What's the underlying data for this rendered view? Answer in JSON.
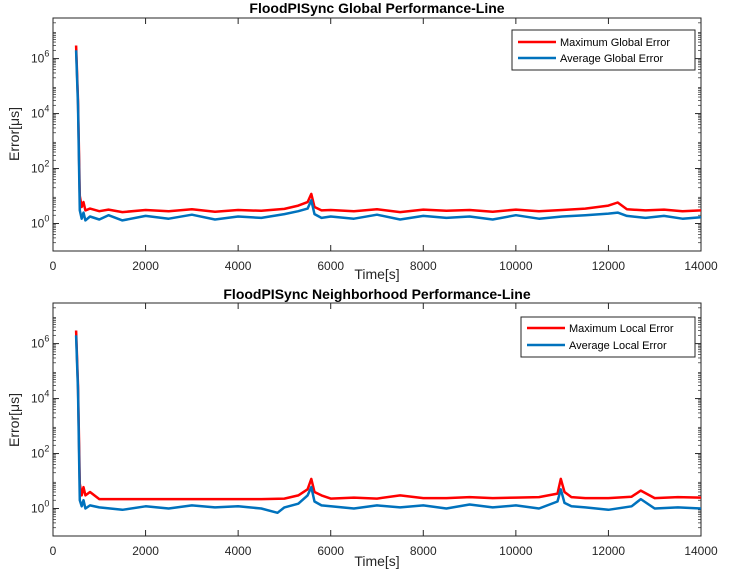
{
  "chart_data": [
    {
      "type": "line",
      "title": "FloodPISync Global Performance-Line",
      "xlabel": "Time[s]",
      "ylabel": "Error[μs]",
      "yscale": "log",
      "xlim": [
        0,
        14000
      ],
      "ylim": [
        0.1,
        30000000
      ],
      "grid": false,
      "legend_position": "top-right",
      "xticks": [
        0,
        2000,
        4000,
        6000,
        8000,
        10000,
        12000,
        14000
      ],
      "ytick_exponents": [
        0,
        2,
        4,
        6
      ],
      "colors": {
        "max": "#FF0000",
        "avg": "#0072BD"
      },
      "series": [
        {
          "name": "Maximum Global Error",
          "x": [
            500,
            540,
            580,
            620,
            660,
            700,
            800,
            1000,
            1200,
            1500,
            2000,
            2500,
            3000,
            3500,
            4000,
            4500,
            5000,
            5300,
            5500,
            5580,
            5650,
            5800,
            6000,
            6500,
            7000,
            7500,
            8000,
            8500,
            9000,
            9500,
            10000,
            10500,
            11000,
            11500,
            12000,
            12200,
            12400,
            12800,
            13200,
            13600,
            14000
          ],
          "values": [
            3000000,
            30000,
            10,
            4,
            6,
            3,
            3.5,
            2.8,
            3.2,
            2.6,
            3.1,
            2.8,
            3.3,
            2.7,
            3.1,
            2.9,
            3.4,
            4.5,
            6,
            12,
            4,
            3,
            3.1,
            2.8,
            3.3,
            2.6,
            3.2,
            2.9,
            3.1,
            2.7,
            3.2,
            2.8,
            3.1,
            3.5,
            4.5,
            5.8,
            3.3,
            3.0,
            3.2,
            2.8,
            3.0
          ]
        },
        {
          "name": "Average Global Error",
          "x": [
            500,
            540,
            580,
            620,
            660,
            700,
            800,
            1000,
            1200,
            1500,
            2000,
            2500,
            3000,
            3500,
            4000,
            4500,
            5000,
            5300,
            5500,
            5580,
            5650,
            5800,
            6000,
            6500,
            7000,
            7500,
            8000,
            8500,
            9000,
            9500,
            10000,
            10500,
            11000,
            11500,
            12000,
            12200,
            12400,
            12800,
            13200,
            13600,
            14000
          ],
          "values": [
            2000000,
            20000,
            3,
            1.5,
            2.5,
            1.3,
            1.8,
            1.4,
            2.0,
            1.3,
            1.9,
            1.5,
            2.1,
            1.4,
            1.8,
            1.6,
            2.2,
            2.8,
            3.5,
            7,
            2.2,
            1.6,
            1.8,
            1.5,
            2.1,
            1.4,
            1.9,
            1.6,
            1.8,
            1.4,
            2.0,
            1.5,
            1.8,
            2.0,
            2.3,
            2.5,
            1.9,
            1.6,
            1.9,
            1.5,
            1.7
          ]
        }
      ]
    },
    {
      "type": "line",
      "title": "FloodPISync Neighborhood Performance-Line",
      "xlabel": "Time[s]",
      "ylabel": "Error[μs]",
      "yscale": "log",
      "xlim": [
        0,
        14000
      ],
      "ylim": [
        0.1,
        30000000
      ],
      "grid": false,
      "legend_position": "top-right",
      "xticks": [
        0,
        2000,
        4000,
        6000,
        8000,
        10000,
        12000,
        14000
      ],
      "ytick_exponents": [
        0,
        2,
        4,
        6
      ],
      "colors": {
        "max": "#FF0000",
        "avg": "#0072BD"
      },
      "series": [
        {
          "name": "Maximum Local Error",
          "x": [
            500,
            540,
            580,
            620,
            660,
            700,
            800,
            1000,
            1500,
            2000,
            2500,
            3000,
            3500,
            4000,
            4500,
            5000,
            5300,
            5500,
            5580,
            5650,
            5800,
            6000,
            6500,
            7000,
            7500,
            8000,
            8500,
            9000,
            9500,
            10000,
            10500,
            10900,
            10970,
            11050,
            11200,
            11500,
            12000,
            12500,
            12700,
            13000,
            13500,
            14000
          ],
          "values": [
            3000000,
            30000,
            8,
            3,
            6,
            3,
            4,
            2.2,
            2.2,
            2.2,
            2.2,
            2.2,
            2.2,
            2.2,
            2.2,
            2.3,
            3,
            5,
            12,
            4,
            3,
            2.3,
            2.5,
            2.3,
            3,
            2.4,
            2.4,
            2.6,
            2.4,
            2.5,
            2.6,
            3.5,
            12,
            4,
            2.6,
            2.4,
            2.4,
            2.7,
            4.5,
            2.4,
            2.6,
            2.5
          ]
        },
        {
          "name": "Average Local Error",
          "x": [
            500,
            540,
            580,
            620,
            660,
            700,
            800,
            1000,
            1500,
            2000,
            2500,
            3000,
            3500,
            4000,
            4500,
            4850,
            5000,
            5300,
            5500,
            5580,
            5650,
            5800,
            6000,
            6500,
            7000,
            7500,
            8000,
            8500,
            9000,
            9500,
            10000,
            10500,
            10900,
            10970,
            11050,
            11200,
            11500,
            12000,
            12500,
            12700,
            13000,
            13500,
            14000
          ],
          "values": [
            2000000,
            20000,
            2,
            1.2,
            2,
            1,
            1.3,
            1.1,
            0.9,
            1.2,
            1.0,
            1.3,
            1.1,
            1.2,
            1.0,
            0.7,
            1.1,
            1.5,
            3,
            6,
            1.8,
            1.3,
            1.2,
            1.0,
            1.3,
            1.1,
            1.3,
            1.0,
            1.4,
            1.1,
            1.3,
            1.0,
            1.8,
            5,
            1.6,
            1.2,
            1.1,
            0.9,
            1.2,
            2.2,
            1.0,
            1.1,
            1.0
          ]
        }
      ]
    }
  ]
}
